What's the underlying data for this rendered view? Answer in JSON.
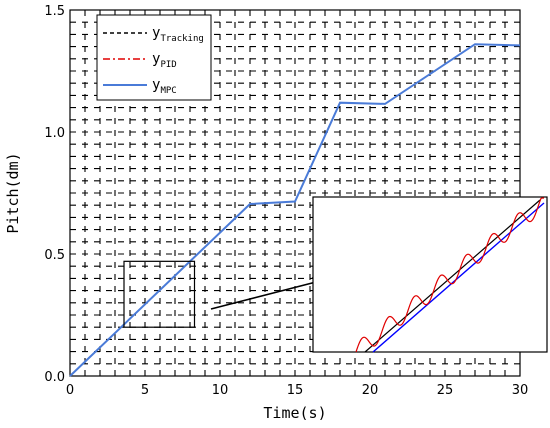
{
  "chart_data": {
    "type": "line",
    "xlabel": "Time(s)",
    "ylabel": "Pitch(dm)",
    "xlim": [
      0,
      30
    ],
    "ylim": [
      0,
      1.5
    ],
    "x_ticks": [
      "0",
      "5",
      "10",
      "15",
      "20",
      "25",
      "30"
    ],
    "y_ticks": [
      "0.0",
      "0.5",
      "1.0",
      "1.5"
    ],
    "grid": "dashed",
    "legend": {
      "placement": "top-left",
      "entries": [
        {
          "base": "y",
          "sub": "Tracking",
          "color": "#000000",
          "style": "dashed"
        },
        {
          "base": "y",
          "sub": "PID",
          "color": "#e00000",
          "style": "dash-dot"
        },
        {
          "base": "y",
          "sub": "MPC",
          "color": "#4a7bd8",
          "style": "solid"
        }
      ]
    },
    "series": [
      {
        "name": "MPC",
        "color": "#4a7bd8",
        "x": [
          0,
          12,
          15,
          18,
          21,
          27,
          30
        ],
        "y": [
          0,
          0.705,
          0.715,
          1.12,
          1.115,
          1.36,
          1.355
        ]
      }
    ],
    "zoom_window": {
      "x": [
        3.6,
        8.3
      ],
      "y": [
        0.2,
        0.47
      ]
    },
    "inset": {
      "tracking_color": "#000000",
      "pid_color": "#e00000",
      "mpc_color": "#0000ff"
    }
  }
}
